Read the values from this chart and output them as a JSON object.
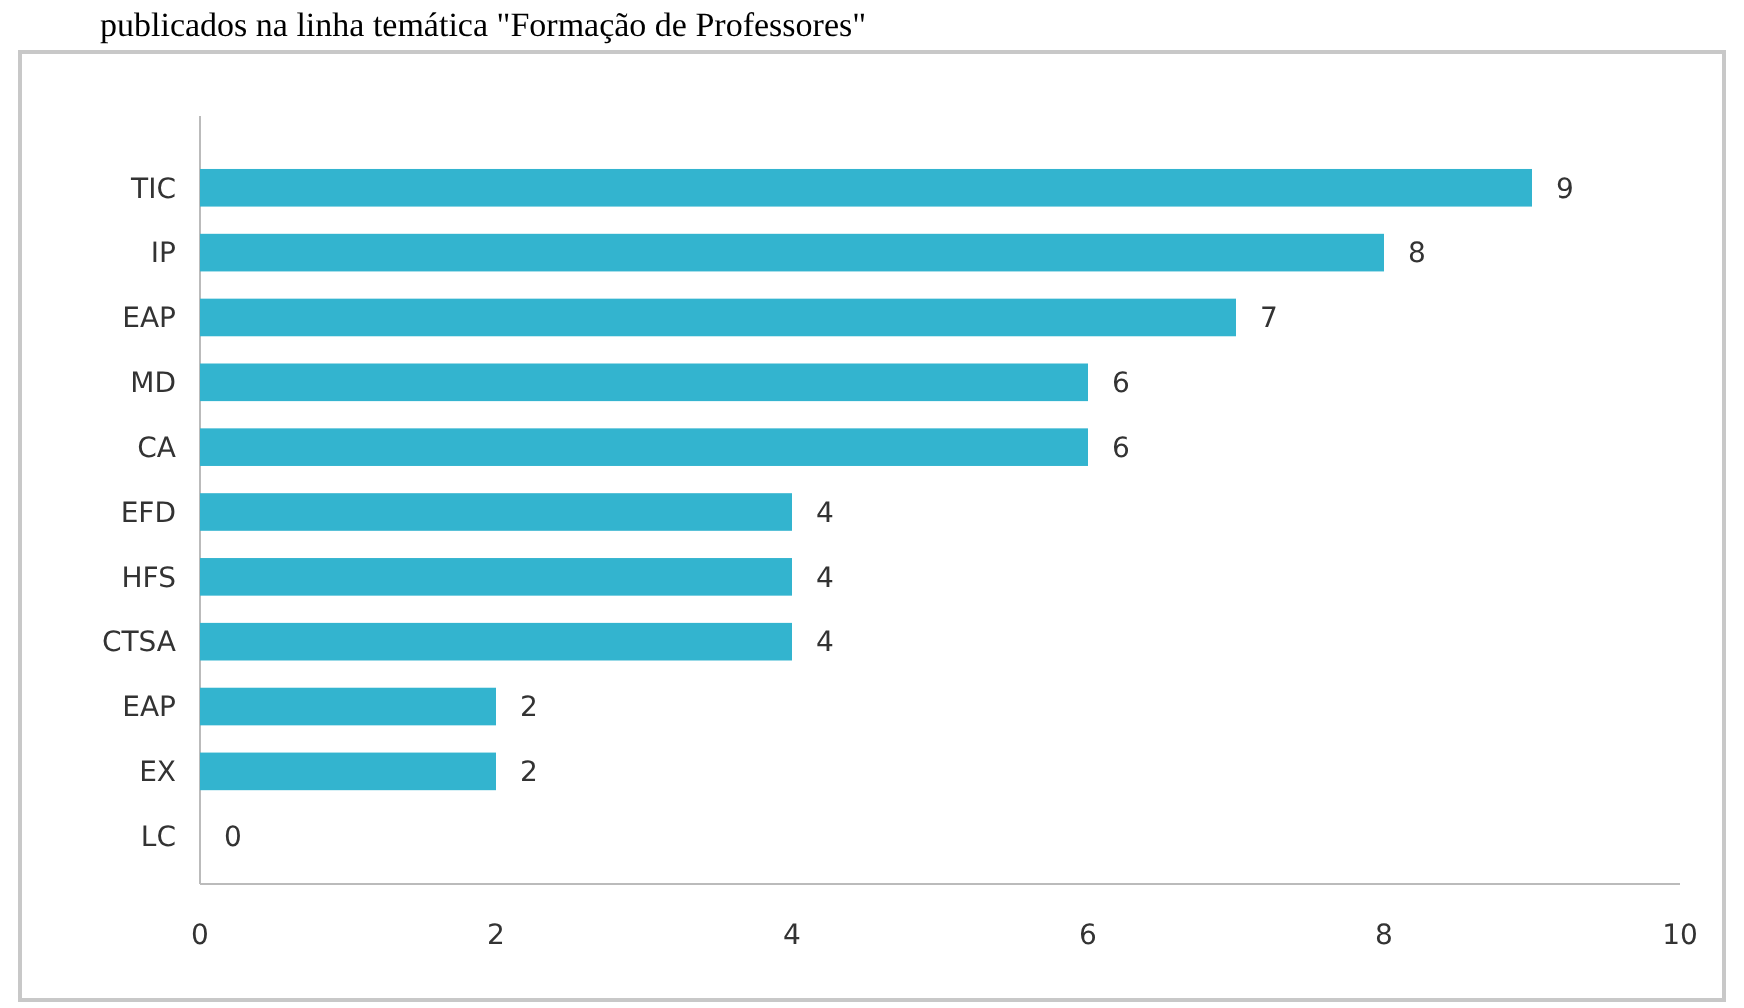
{
  "chart_data": {
    "type": "bar",
    "orientation": "horizontal",
    "title": "publicados na linha temática \"Formação de Professores\"",
    "categories": [
      "TIC",
      "IP",
      "EAP",
      "MD",
      "CA",
      "EFD",
      "HFS",
      "CTSA",
      "EAP",
      "EX",
      "LC"
    ],
    "values": [
      9,
      8,
      7,
      6,
      6,
      4,
      4,
      4,
      2,
      2,
      0
    ],
    "color": "#33b4cf",
    "xlim": [
      0,
      10
    ],
    "xticks": [
      0,
      2,
      4,
      6,
      8,
      10
    ],
    "data_labels": true,
    "grid": false
  }
}
